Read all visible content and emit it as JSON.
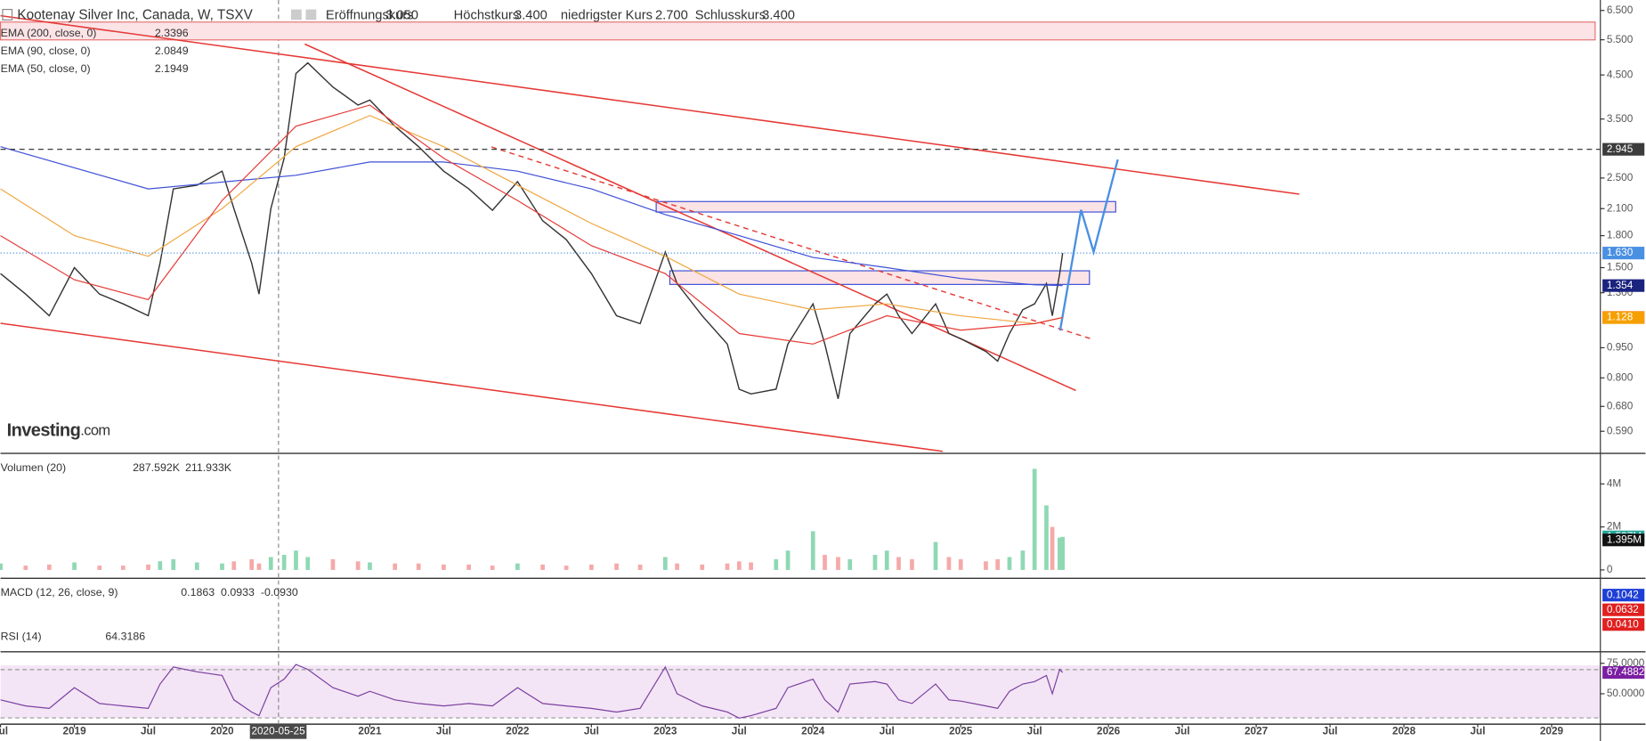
{
  "header": {
    "symbol": "Kootenay Silver Inc, Canada, W, TSXV",
    "fields": [
      {
        "label": "Eröffnungskurs",
        "value": "3.050"
      },
      {
        "label": "Höchstkurs",
        "value": "3.400"
      },
      {
        "label": "niedrigster Kurs",
        "value": "2.700"
      },
      {
        "label": "Schlusskurs",
        "value": "3.400"
      }
    ]
  },
  "watermark": {
    "brand": "Investing",
    "suffix": ".com"
  },
  "crosshair": {
    "value": 2020.38,
    "label": "2020-05-25"
  },
  "macd": {
    "title": "MACD (12, 26, close, 9)",
    "legend_values": [
      "0.1863",
      "0.0933",
      "-0.0930"
    ],
    "legend_colors": [
      "#e53935",
      "#2962ff",
      "#e53935"
    ],
    "markers": [
      {
        "label": "0.1042",
        "color": "#1e3fd6"
      },
      {
        "label": "0.0632",
        "color": "#e0201f"
      },
      {
        "label": "0.0410",
        "color": "#e0201f"
      }
    ]
  },
  "chart_data": [
    {
      "type": "line",
      "log_scale": true,
      "xlim": [
        2018.5,
        2029.33
      ],
      "ylim": [
        0.52,
        6.9
      ],
      "xticks": [
        {
          "value": 2018.5,
          "label": "Jul"
        },
        2019,
        {
          "value": 2019.5,
          "label": "Jul"
        },
        2020,
        2021,
        {
          "value": 2021.5,
          "label": "Jul"
        },
        2022,
        {
          "value": 2022.5,
          "label": "Jul"
        },
        2023,
        {
          "value": 2023.5,
          "label": "Jul"
        },
        2024,
        {
          "value": 2024.5,
          "label": "Jul"
        },
        2025,
        {
          "value": 2025.5,
          "label": "Jul"
        },
        2026,
        {
          "value": 2026.5,
          "label": "Jul"
        },
        2027,
        {
          "value": 2027.5,
          "label": "Jul"
        },
        2028,
        {
          "value": 2028.5,
          "label": "Jul"
        },
        2029
      ],
      "yticks": [
        {
          "value": 6.5,
          "label": "6.500"
        },
        {
          "value": 5.5,
          "label": "5.500"
        },
        {
          "value": 4.5,
          "label": "4.500"
        },
        {
          "value": 3.5,
          "label": "3.500"
        },
        {
          "value": 2.5,
          "label": "2.500"
        },
        {
          "value": 2.1,
          "label": "2.100"
        },
        {
          "value": 1.8,
          "label": "1.800"
        },
        {
          "value": 1.5,
          "label": "1.500"
        },
        {
          "value": 1.3,
          "label": "1.300"
        },
        {
          "value": 0.95,
          "label": "0.950"
        },
        {
          "value": 0.8,
          "label": "0.800"
        },
        {
          "value": 0.68,
          "label": "0.680"
        },
        {
          "value": 0.59,
          "label": "0.590"
        }
      ],
      "markers": [
        {
          "value": 2.945,
          "label": "2.945",
          "color": "#3c3c3c",
          "style": "dashed"
        },
        {
          "value": 1.63,
          "label": "1.630",
          "color": "#4a90e2",
          "style": "dotted"
        },
        {
          "value": 1.354,
          "label": "1.354",
          "color": "#1a237e"
        },
        {
          "value": 1.129,
          "label": "1.129",
          "color": "#f0201e"
        },
        {
          "value": 1.128,
          "label": "1.128",
          "color": "#f5a000"
        }
      ],
      "x": [
        2018.5,
        2018.67,
        2018.83,
        2019.0,
        2019.17,
        2019.33,
        2019.5,
        2019.58,
        2019.67,
        2019.83,
        2020.0,
        2020.08,
        2020.2,
        2020.25,
        2020.33,
        2020.42,
        2020.5,
        2020.58,
        2020.75,
        2020.92,
        2021.0,
        2021.17,
        2021.33,
        2021.5,
        2021.67,
        2021.83,
        2022.0,
        2022.17,
        2022.33,
        2022.5,
        2022.67,
        2022.83,
        2023.0,
        2023.08,
        2023.25,
        2023.42,
        2023.5,
        2023.58,
        2023.75,
        2023.83,
        2024.0,
        2024.08,
        2024.17,
        2024.25,
        2024.42,
        2024.5,
        2024.58,
        2024.67,
        2024.83,
        2024.92,
        2025.0,
        2025.17,
        2025.25,
        2025.33,
        2025.42,
        2025.5,
        2025.58,
        2025.62,
        2025.67,
        2025.69
      ],
      "series": [
        {
          "color": "#333333",
          "values": [
            1.45,
            1.29,
            1.14,
            1.5,
            1.29,
            1.22,
            1.14,
            1.54,
            2.35,
            2.4,
            2.6,
            2.1,
            1.54,
            1.29,
            2.1,
            2.8,
            4.54,
            4.82,
            4.2,
            3.79,
            3.9,
            3.36,
            2.99,
            2.6,
            2.35,
            2.08,
            2.45,
            1.96,
            1.76,
            1.45,
            1.14,
            1.09,
            1.64,
            1.37,
            1.14,
            0.97,
            0.75,
            0.73,
            0.75,
            0.97,
            1.22,
            0.97,
            0.71,
            1.03,
            1.22,
            1.29,
            1.14,
            1.03,
            1.22,
            1.03,
            1.0,
            0.93,
            0.88,
            1.03,
            1.18,
            1.22,
            1.37,
            1.14,
            1.45,
            1.63
          ]
        },
        {
          "name": "EMA (200, close, 0)",
          "legend_value": "2.3396",
          "color": "#3d4fd6",
          "x": [
            2018.5,
            2019.5,
            2020.5,
            2021.0,
            2021.5,
            2022.0,
            2022.5,
            2023.0,
            2023.5,
            2024.0,
            2024.5,
            2025.0,
            2025.5,
            2025.69
          ],
          "values": [
            2.99,
            2.35,
            2.54,
            2.74,
            2.74,
            2.6,
            2.35,
            2.03,
            1.8,
            1.59,
            1.5,
            1.41,
            1.36,
            1.354
          ]
        },
        {
          "name": "EMA (90, close, 0)",
          "legend_value": "2.0849",
          "color": "#f0a640",
          "x": [
            2018.5,
            2019.0,
            2019.5,
            2020.0,
            2020.5,
            2021.0,
            2021.5,
            2022.0,
            2022.5,
            2023.0,
            2023.5,
            2024.0,
            2024.5,
            2025.0,
            2025.5,
            2025.69
          ],
          "values": [
            2.35,
            1.8,
            1.6,
            2.1,
            2.99,
            3.57,
            2.99,
            2.4,
            1.93,
            1.6,
            1.29,
            1.18,
            1.22,
            1.14,
            1.09,
            1.128
          ]
        },
        {
          "name": "EMA (50, close, 0)",
          "legend_value": "2.1949",
          "color": "#e53935",
          "x": [
            2018.5,
            2019.0,
            2019.5,
            2020.0,
            2020.5,
            2021.0,
            2021.5,
            2022.0,
            2022.5,
            2023.0,
            2023.5,
            2024.0,
            2024.5,
            2025.0,
            2025.5,
            2025.69
          ],
          "values": [
            1.8,
            1.4,
            1.25,
            2.2,
            3.36,
            3.79,
            2.8,
            2.2,
            1.7,
            1.45,
            1.03,
            0.97,
            1.14,
            1.05,
            1.09,
            1.129
          ]
        }
      ]
    },
    {
      "type": "bar",
      "title": "Volumen (20)",
      "legend_values": [
        "287.592K",
        "211.933K"
      ],
      "legend_colors": [
        "#26a69a",
        "#333333"
      ],
      "ylim": [
        -390000,
        5370000
      ],
      "yticks": [
        {
          "value": 4000000,
          "label": "4M"
        },
        {
          "value": 2000000,
          "label": "2M"
        },
        0
      ],
      "markers": [
        {
          "value": 1537000,
          "label": "1.537M",
          "color": "#26a69a"
        },
        {
          "value": 1395000,
          "label": "1.395M",
          "color": "#111111"
        }
      ],
      "up_color": "#8fd8b4",
      "down_color": "#f5a9a9",
      "values": [
        300000,
        200000,
        250000,
        350000,
        200000,
        200000,
        250000,
        400000,
        500000,
        350000,
        300000,
        400000,
        500000,
        300000,
        600000,
        700000,
        900000,
        600000,
        500000,
        400000,
        350000,
        300000,
        300000,
        250000,
        250000,
        200000,
        300000,
        250000,
        200000,
        250000,
        300000,
        250000,
        600000,
        300000,
        250000,
        300000,
        400000,
        350000,
        500000,
        900000,
        1800000,
        700000,
        600000,
        500000,
        700000,
        900000,
        600000,
        500000,
        1300000,
        600000,
        500000,
        400000,
        500000,
        600000,
        900000,
        4700000,
        3000000,
        2000000,
        1500000,
        1537000
      ]
    },
    {
      "type": "line",
      "title": "RSI (14)",
      "legend_value": "64.3186",
      "color": "#7b3fa0",
      "ylim": [
        25,
        83.6
      ],
      "yticks": [
        {
          "value": 75,
          "label": "75.0000"
        },
        {
          "value": 50,
          "label": "50.0000"
        }
      ],
      "markers": [
        {
          "value": 67.4882,
          "label": "67.4882",
          "color": "#7b1fa2"
        }
      ],
      "values": [
        45,
        40,
        38,
        55,
        42,
        40,
        38,
        58,
        72,
        68,
        65,
        45,
        35,
        32,
        55,
        62,
        74,
        70,
        55,
        48,
        52,
        45,
        42,
        40,
        42,
        40,
        55,
        42,
        40,
        38,
        35,
        38,
        72,
        50,
        40,
        35,
        30,
        32,
        38,
        55,
        62,
        45,
        35,
        58,
        60,
        58,
        45,
        42,
        58,
        45,
        44,
        40,
        38,
        52,
        58,
        60,
        65,
        50,
        70,
        67.4882
      ]
    }
  ]
}
